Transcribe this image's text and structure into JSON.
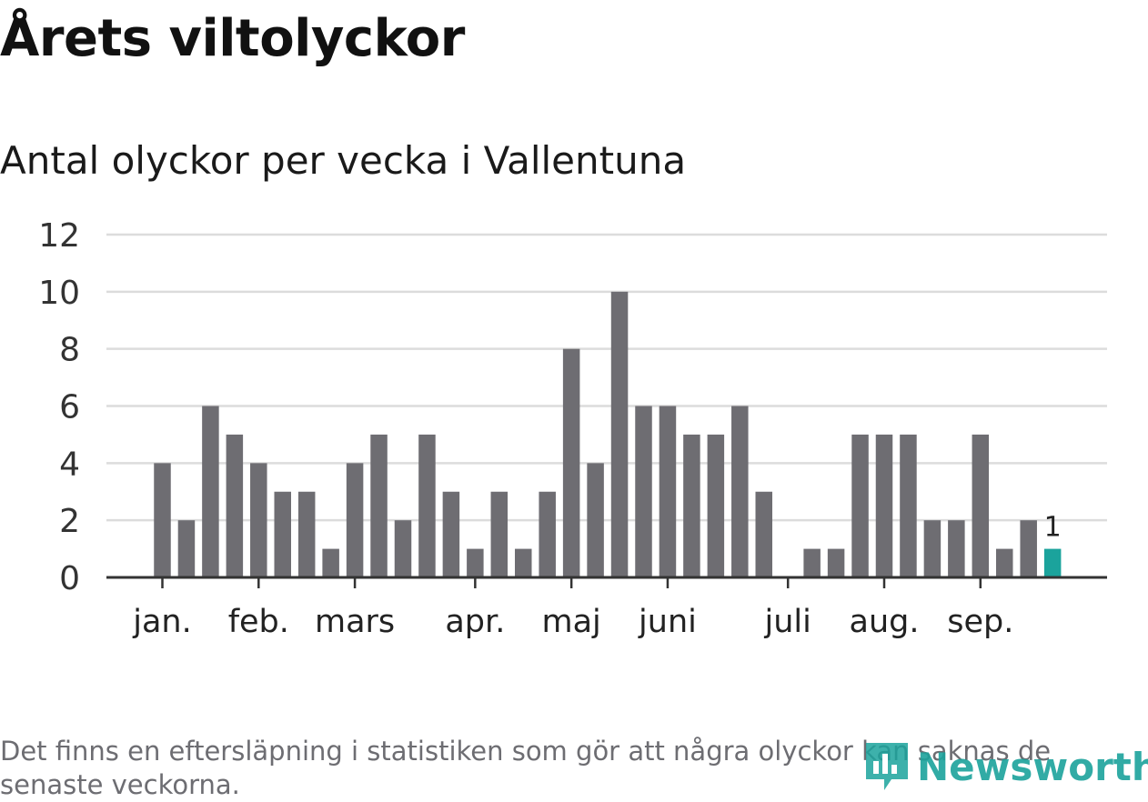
{
  "header": {
    "title": "Årets viltolyckor",
    "subtitle": "Antal olyckor per vecka i Vallentuna"
  },
  "footer": {
    "note": "Det finns en eftersläpning i statistiken som gör att några olyckor kan saknas de senaste veckorna.",
    "logo_text": "Newsworthy"
  },
  "colors": {
    "bar": "#6e6d72",
    "highlight": "#1ba39c",
    "grid": "#dcdcdc",
    "axis": "#333333"
  },
  "chart_data": {
    "type": "bar",
    "values": [
      4,
      2,
      6,
      5,
      4,
      3,
      3,
      1,
      4,
      5,
      2,
      5,
      3,
      1,
      3,
      1,
      3,
      8,
      4,
      10,
      6,
      6,
      5,
      5,
      6,
      3,
      0,
      1,
      1,
      5,
      5,
      5,
      2,
      2,
      5,
      1,
      2,
      1
    ],
    "highlight_last": true,
    "last_value_label": "1",
    "yticks": [
      "0",
      "2",
      "4",
      "6",
      "8",
      "10",
      "12"
    ],
    "ylim": [
      0,
      12
    ],
    "month_labels": [
      {
        "label": "jan.",
        "week": 1
      },
      {
        "label": "feb.",
        "week": 5
      },
      {
        "label": "mars",
        "week": 9
      },
      {
        "label": "apr.",
        "week": 14
      },
      {
        "label": "maj",
        "week": 18
      },
      {
        "label": "juni",
        "week": 22
      },
      {
        "label": "juli",
        "week": 27
      },
      {
        "label": "aug.",
        "week": 31
      },
      {
        "label": "sep.",
        "week": 35
      }
    ],
    "grid": true
  }
}
